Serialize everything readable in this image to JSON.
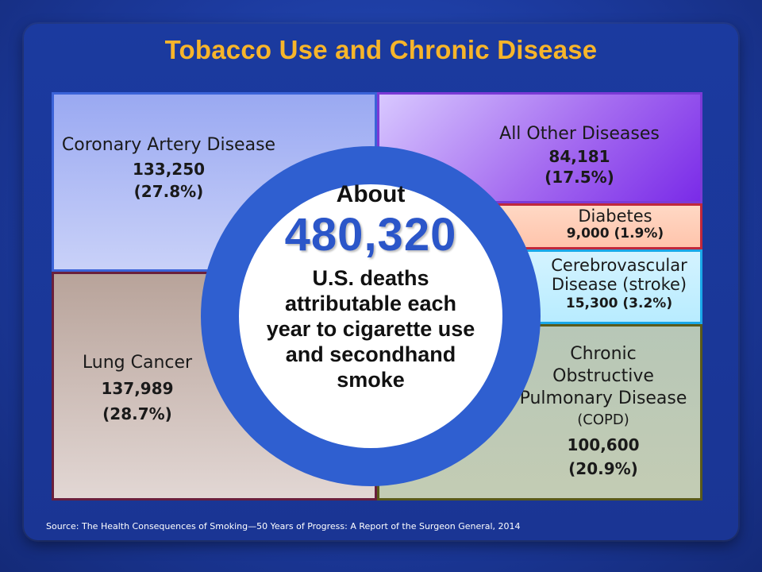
{
  "title": "Tobacco Use and Chronic Disease",
  "center": {
    "about": "About",
    "number": "480,320",
    "lines": [
      "U.S. deaths",
      "attributable each",
      "year to cigarette use",
      "and secondhand",
      "smoke"
    ]
  },
  "segments": {
    "coronary": {
      "name": "Coronary Artery Disease",
      "count": "133,250",
      "pct": "(27.8%)"
    },
    "other": {
      "name": "All Other Diseases",
      "count": "84,181",
      "pct": "(17.5%)"
    },
    "diabetes": {
      "name": "Diabetes",
      "value": "9,000  (1.9%)"
    },
    "cerebro": {
      "name1": "Cerebrovascular",
      "name2": "Disease (stroke)",
      "value": "15,300  (3.2%)"
    },
    "copd": {
      "name1": "Chronic",
      "name2": "Obstructive",
      "name3": "Pulmonary Disease",
      "name4": "(COPD)",
      "count": "100,600",
      "pct": "(20.9%)"
    },
    "lung": {
      "name": "Lung Cancer",
      "count": "137,989",
      "pct": "(28.7%)"
    }
  },
  "source": "Source: The Health Consequences of Smoking—50 Years of Progress: A Report of the Surgeon General, 2014"
}
